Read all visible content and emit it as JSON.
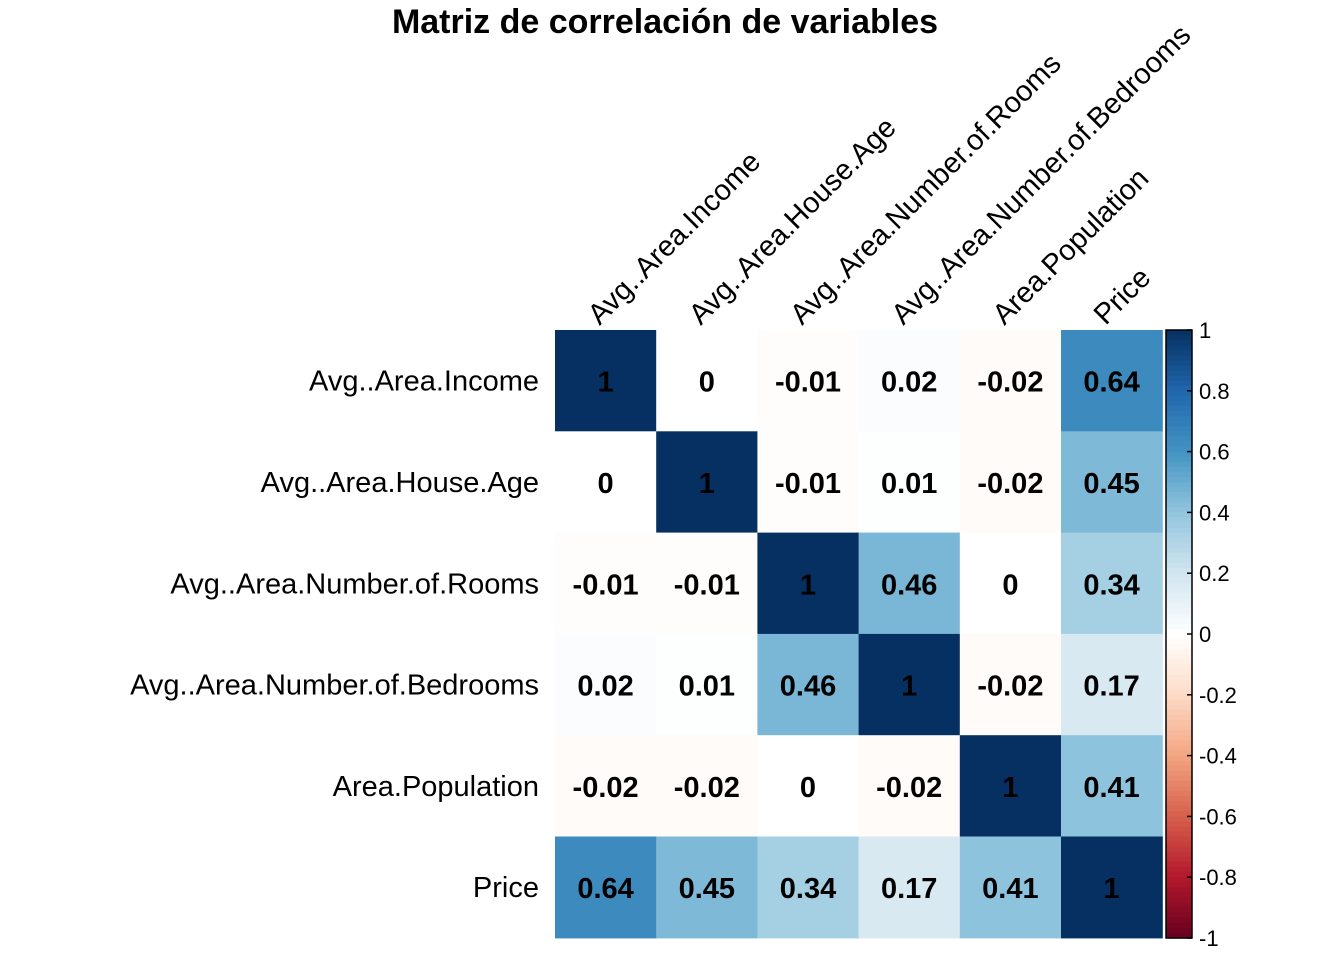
{
  "chart_data": {
    "type": "heatmap",
    "title": "Matriz de correlación de variables",
    "variables": [
      "Avg..Area.Income",
      "Avg..Area.House.Age",
      "Avg..Area.Number.of.Rooms",
      "Avg..Area.Number.of.Bedrooms",
      "Area.Population",
      "Price"
    ],
    "matrix": [
      [
        1,
        0,
        -0.01,
        0.02,
        -0.02,
        0.64
      ],
      [
        0,
        1,
        -0.01,
        0.01,
        -0.02,
        0.45
      ],
      [
        -0.01,
        -0.01,
        1,
        0.46,
        0,
        0.34
      ],
      [
        0.02,
        0.01,
        0.46,
        1,
        -0.02,
        0.17
      ],
      [
        -0.02,
        -0.02,
        0,
        -0.02,
        1,
        0.41
      ],
      [
        0.64,
        0.45,
        0.34,
        0.17,
        0.41,
        1
      ]
    ],
    "color_range": [
      -1,
      1
    ],
    "colors": {
      "negative_end": "#67001f",
      "positive_end": "#053061",
      "midpoint": "#ffffff"
    },
    "legend": {
      "placement": "right",
      "ticks": [
        "1",
        "0.8",
        "0.6",
        "0.4",
        "0.2",
        "0",
        "-0.2",
        "-0.4",
        "-0.6",
        "-0.8",
        "-1"
      ]
    },
    "column_label_rotation": "45 degrees",
    "grid": false
  }
}
